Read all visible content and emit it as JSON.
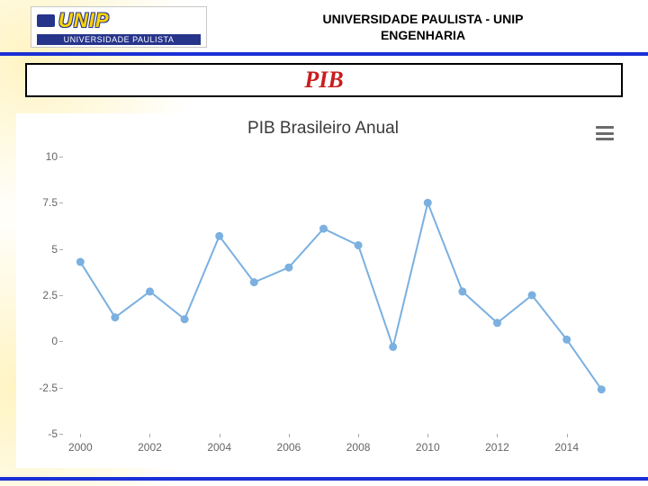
{
  "header": {
    "line1": "UNIVERSIDADE PAULISTA - UNIP",
    "line2": "ENGENHARIA",
    "logo_word": "UNIP",
    "logo_strip": "UNIVERSIDADE PAULISTA"
  },
  "section_title": "PIB",
  "chart": {
    "type": "line",
    "title": "PIB Brasileiro Anual",
    "line_color": "#7bb0e0",
    "marker_color": "#7bb0e0",
    "marker_radius": 4.5,
    "line_width": 2,
    "background_color": "#ffffff",
    "title_color": "#3a3a3a",
    "title_fontsize": 19,
    "axis_label_color": "#666666",
    "axis_label_fontsize": 12,
    "tick_color": "#aaaaaa",
    "xlim": [
      1999.5,
      2015.2
    ],
    "ylim": [
      -5,
      10
    ],
    "ytick_step": 2.5,
    "xtick_step": 2,
    "xtick_start": 2000,
    "x": [
      2000,
      2001,
      2002,
      2003,
      2004,
      2005,
      2006,
      2007,
      2008,
      2009,
      2010,
      2011,
      2012,
      2013,
      2014,
      2015
    ],
    "y": [
      4.3,
      1.3,
      2.7,
      1.2,
      5.7,
      3.2,
      4.0,
      6.1,
      5.2,
      -0.3,
      7.5,
      2.7,
      1.0,
      2.5,
      0.1,
      -2.6
    ]
  },
  "brand_blue": "#1b2fd6",
  "title_red": "#c81e1e"
}
